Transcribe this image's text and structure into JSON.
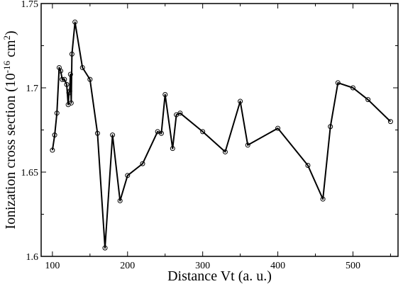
{
  "chart_data": {
    "type": "line",
    "xlabel": "Distance Vt (a. u.)",
    "ylabel_parts": {
      "base": "Ionization cross section (10",
      "exp1": "-16",
      "mid": " cm",
      "exp2": "2",
      "end": ")"
    },
    "xlim": [
      85,
      560
    ],
    "ylim": [
      1.6,
      1.75
    ],
    "xticks": [
      100,
      200,
      300,
      400,
      500
    ],
    "yticks": [
      1.6,
      1.65,
      1.7,
      1.75
    ],
    "ytick_labels": [
      "1.6",
      "1.65",
      "1.7",
      "1.75"
    ],
    "grid": false,
    "marker": "open-circle",
    "line_color": "#000000",
    "series": [
      {
        "x": [
          100,
          103,
          106,
          109,
          111,
          113,
          116,
          119,
          121,
          122,
          123,
          124,
          125,
          126,
          130,
          140,
          150,
          160,
          170,
          180,
          190,
          200,
          220,
          240,
          245,
          250,
          260,
          265,
          270,
          300,
          330,
          350,
          360,
          400,
          440,
          460,
          470,
          480,
          500,
          520,
          550
        ],
        "y": [
          1.663,
          1.672,
          1.685,
          1.712,
          1.71,
          1.705,
          1.705,
          1.702,
          1.69,
          1.697,
          1.698,
          1.708,
          1.691,
          1.72,
          1.739,
          1.712,
          1.705,
          1.673,
          1.605,
          1.672,
          1.633,
          1.648,
          1.655,
          1.674,
          1.673,
          1.696,
          1.664,
          1.684,
          1.685,
          1.674,
          1.662,
          1.692,
          1.666,
          1.676,
          1.654,
          1.634,
          1.677,
          1.703,
          1.7,
          1.693,
          1.68
        ]
      }
    ]
  }
}
